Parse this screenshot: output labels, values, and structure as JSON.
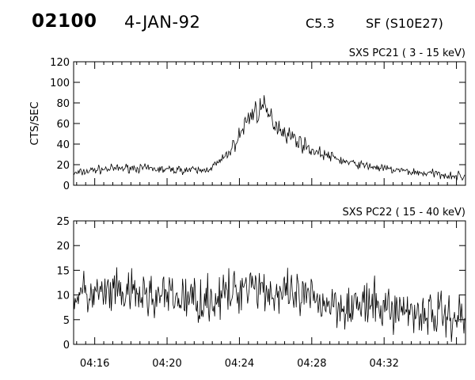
{
  "header": {
    "event_id": "02100",
    "date": "4-JAN-92",
    "flare_class": "C5.3",
    "flare_location": "SF (S10E27)"
  },
  "chart_data": [
    {
      "type": "line",
      "label": "SXS PC21  (  3 - 15 keV)",
      "ylabel": "CTS/SEC",
      "xlabel": "",
      "ylim": [
        0,
        120
      ],
      "yticks": [
        0,
        20,
        40,
        60,
        80,
        100,
        120
      ],
      "xlim": [
        "04:14:50",
        "04:36:30"
      ],
      "xticks": [
        "04:16",
        "04:20",
        "04:24",
        "04:28",
        "04:32"
      ],
      "grid": false,
      "series": [
        {
          "x": [
            "04:14:50",
            "04:16:00",
            "04:17:00",
            "04:18:00",
            "04:19:00",
            "04:20:00",
            "04:21:00",
            "04:22:00",
            "04:22:30",
            "04:23:00",
            "04:23:20",
            "04:23:40",
            "04:24:00",
            "04:24:20",
            "04:24:40",
            "04:25:00",
            "04:25:10",
            "04:25:30",
            "04:26:00",
            "04:26:30",
            "04:27:00",
            "04:27:30",
            "04:28:00",
            "04:29:00",
            "04:30:00",
            "04:31:00",
            "04:32:00",
            "04:33:00",
            "04:34:00",
            "04:35:00",
            "04:36:30"
          ],
          "y": [
            11,
            15,
            16,
            17,
            16,
            15,
            15,
            14,
            18,
            24,
            30,
            38,
            48,
            60,
            70,
            73,
            76,
            70,
            60,
            52,
            46,
            40,
            34,
            28,
            22,
            19,
            16,
            14,
            12,
            11,
            8
          ]
        }
      ]
    },
    {
      "type": "line",
      "label": "SXS PC22  ( 15 - 40 keV)",
      "ylabel": "",
      "xlabel": "",
      "ylim": [
        0,
        25
      ],
      "yticks": [
        0,
        5,
        10,
        15,
        20,
        25
      ],
      "xlim": [
        "04:14:50",
        "04:36:30"
      ],
      "xticks": [
        "04:16",
        "04:20",
        "04:24",
        "04:28",
        "04:32"
      ],
      "grid": false,
      "series": [
        {
          "x": [
            "04:14:50",
            "04:16:00",
            "04:18:00",
            "04:20:00",
            "04:22:00",
            "04:23:00",
            "04:24:00",
            "04:24:30",
            "04:25:00",
            "04:26:00",
            "04:27:00",
            "04:28:00",
            "04:30:00",
            "04:32:00",
            "04:34:00",
            "04:36:30"
          ],
          "y": [
            10,
            10,
            10,
            9.5,
            9,
            9.5,
            11,
            13,
            12,
            10,
            9.5,
            9,
            8,
            7.5,
            6.5,
            5.5
          ]
        }
      ]
    }
  ]
}
